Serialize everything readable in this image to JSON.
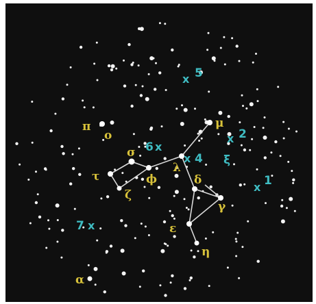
{
  "colors": {
    "sky": "#0f0f0f",
    "greek_label": "#d8c23a",
    "marker_label": "#3fbcc2",
    "line": "#d9d9d9",
    "star": "#f4f4f4"
  },
  "greek_labels": {
    "mu": "μ",
    "pi": "π",
    "omicron": "o",
    "sigma": "σ",
    "lambda": "λ",
    "delta": "δ",
    "tau": "τ",
    "phi": "ϕ",
    "zeta": "ζ",
    "gamma": "γ",
    "epsilon": "ε",
    "eta": "η",
    "alpha": "α",
    "xi": "ξ"
  },
  "markers": {
    "m5": {
      "x": "x",
      "n": "5"
    },
    "m2": {
      "x": "x",
      "n": "2"
    },
    "m6": {
      "n": "6",
      "x": "x"
    },
    "m4": {
      "x": "x",
      "n": "4"
    },
    "m1": {
      "x": "x",
      "n": "1"
    },
    "m7": {
      "n": "7",
      "x": "x"
    }
  }
}
